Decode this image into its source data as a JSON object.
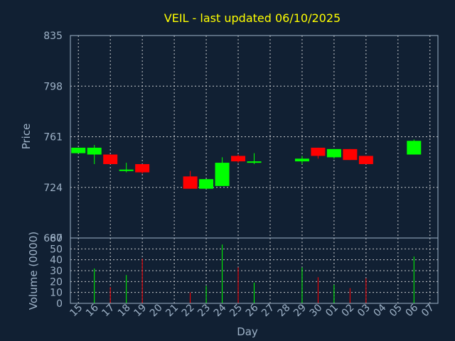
{
  "chart_data": {
    "type": "candlestick",
    "title": "VEIL - last updated 06/10/2025",
    "xlabel": "Day",
    "ylabel_price": "Price",
    "ylabel_volume": "Volume (0000)",
    "price_ylim": [
      687,
      835
    ],
    "price_ticks": [
      835,
      798,
      761,
      724,
      687
    ],
    "volume_ylim": [
      0,
      60
    ],
    "volume_ticks": [
      60,
      50,
      40,
      30,
      20,
      10,
      0
    ],
    "days": [
      "15",
      "16",
      "17",
      "18",
      "19",
      "20",
      "21",
      "22",
      "23",
      "24",
      "25",
      "26",
      "27",
      "28",
      "29",
      "30",
      "01",
      "02",
      "03",
      "04",
      "05",
      "06",
      "07"
    ],
    "grid": true,
    "up_color": "#00ff00",
    "down_color": "#ff0000",
    "candles": [
      {
        "day": "15",
        "open": 749,
        "high": 753,
        "low": 749,
        "close": 753
      },
      {
        "day": "16",
        "open": 748,
        "high": 755,
        "low": 741,
        "close": 753
      },
      {
        "day": "17",
        "open": 748,
        "high": 748,
        "low": 741,
        "close": 741
      },
      {
        "day": "18",
        "open": 736,
        "high": 742,
        "low": 735,
        "close": 737
      },
      {
        "day": "19",
        "open": 741,
        "high": 741,
        "low": 734,
        "close": 735
      },
      {
        "day": "22",
        "open": 732,
        "high": 736,
        "low": 723,
        "close": 723
      },
      {
        "day": "23",
        "open": 723,
        "high": 730,
        "low": 723,
        "close": 730
      },
      {
        "day": "24",
        "open": 725,
        "high": 746,
        "low": 725,
        "close": 742
      },
      {
        "day": "25",
        "open": 747,
        "high": 748,
        "low": 742,
        "close": 743
      },
      {
        "day": "26",
        "open": 742,
        "high": 749,
        "low": 741,
        "close": 743
      },
      {
        "day": "29",
        "open": 743,
        "high": 747,
        "low": 741,
        "close": 745
      },
      {
        "day": "30",
        "open": 753,
        "high": 753,
        "low": 745,
        "close": 747
      },
      {
        "day": "01",
        "open": 746,
        "high": 752,
        "low": 745,
        "close": 752
      },
      {
        "day": "02",
        "open": 752,
        "high": 752,
        "low": 744,
        "close": 744
      },
      {
        "day": "03",
        "open": 747,
        "high": 747,
        "low": 741,
        "close": 741
      },
      {
        "day": "06",
        "open": 748,
        "high": 759,
        "low": 748,
        "close": 758
      }
    ],
    "volumes": [
      {
        "day": "16",
        "value": 32,
        "color": "#00ff00"
      },
      {
        "day": "17",
        "value": 15,
        "color": "#ff0000"
      },
      {
        "day": "18",
        "value": 26,
        "color": "#00ff00"
      },
      {
        "day": "19",
        "value": 41,
        "color": "#ff0000"
      },
      {
        "day": "22",
        "value": 10,
        "color": "#ff0000"
      },
      {
        "day": "23",
        "value": 16,
        "color": "#00ff00"
      },
      {
        "day": "24",
        "value": 54,
        "color": "#00ff00"
      },
      {
        "day": "25",
        "value": 33,
        "color": "#ff0000"
      },
      {
        "day": "26",
        "value": 19,
        "color": "#00ff00"
      },
      {
        "day": "29",
        "value": 33,
        "color": "#00ff00"
      },
      {
        "day": "30",
        "value": 24,
        "color": "#ff0000"
      },
      {
        "day": "01",
        "value": 17,
        "color": "#00ff00"
      },
      {
        "day": "02",
        "value": 14,
        "color": "#ff0000"
      },
      {
        "day": "03",
        "value": 23,
        "color": "#ff0000"
      },
      {
        "day": "06",
        "value": 43,
        "color": "#00ff00"
      }
    ]
  }
}
